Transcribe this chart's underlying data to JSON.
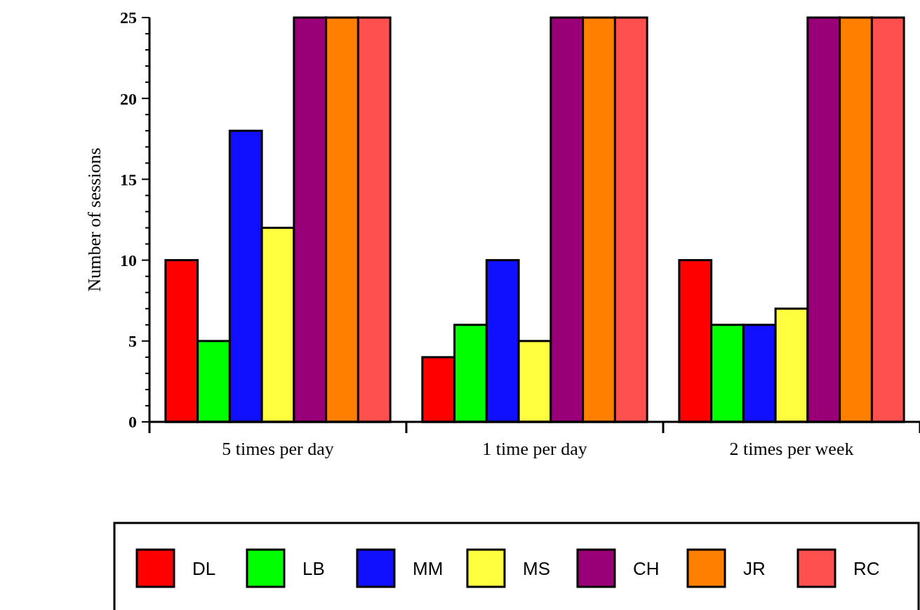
{
  "chart_data": {
    "type": "bar",
    "ylabel": "Number of sessions",
    "categories": [
      "5 times per day",
      "1 time per day",
      "2 times per week"
    ],
    "series": [
      {
        "name": "DL",
        "color": "#ff0000",
        "values": [
          10,
          4,
          10
        ]
      },
      {
        "name": "LB",
        "color": "#00ff00",
        "values": [
          5,
          6,
          6
        ]
      },
      {
        "name": "MM",
        "color": "#1010ff",
        "values": [
          18,
          10,
          6
        ]
      },
      {
        "name": "MS",
        "color": "#ffff40",
        "values": [
          12,
          5,
          7
        ]
      },
      {
        "name": "CH",
        "color": "#990077",
        "values": [
          25,
          25,
          25
        ]
      },
      {
        "name": "JR",
        "color": "#ff8000",
        "values": [
          25,
          25,
          25
        ]
      },
      {
        "name": "RC",
        "color": "#ff5050",
        "values": [
          25,
          25,
          25
        ]
      }
    ],
    "ylim": [
      0,
      25
    ],
    "yticks": [
      0,
      {
        "value": 1,
        "label": null
      },
      {
        "value": 2,
        "label": null
      },
      {
        "value": 3,
        "label": null
      },
      {
        "value": 4,
        "label": null
      },
      5,
      {
        "value": 6,
        "label": null
      },
      {
        "value": 7,
        "label": null
      },
      {
        "value": 8,
        "label": null
      },
      {
        "value": 9,
        "label": null
      },
      10,
      {
        "value": 11,
        "label": null
      },
      {
        "value": 12,
        "label": null
      },
      {
        "value": 13,
        "label": null
      },
      {
        "value": 14,
        "label": null
      },
      15,
      {
        "value": 16,
        "label": null
      },
      {
        "value": 17,
        "label": null
      },
      {
        "value": 18,
        "label": null
      },
      {
        "value": 19,
        "label": null
      },
      20,
      {
        "value": 21,
        "label": null
      },
      {
        "value": 22,
        "label": null
      },
      {
        "value": 23,
        "label": null
      },
      {
        "value": 24,
        "label": null
      },
      25
    ],
    "grid": false,
    "legend": "bottom"
  }
}
